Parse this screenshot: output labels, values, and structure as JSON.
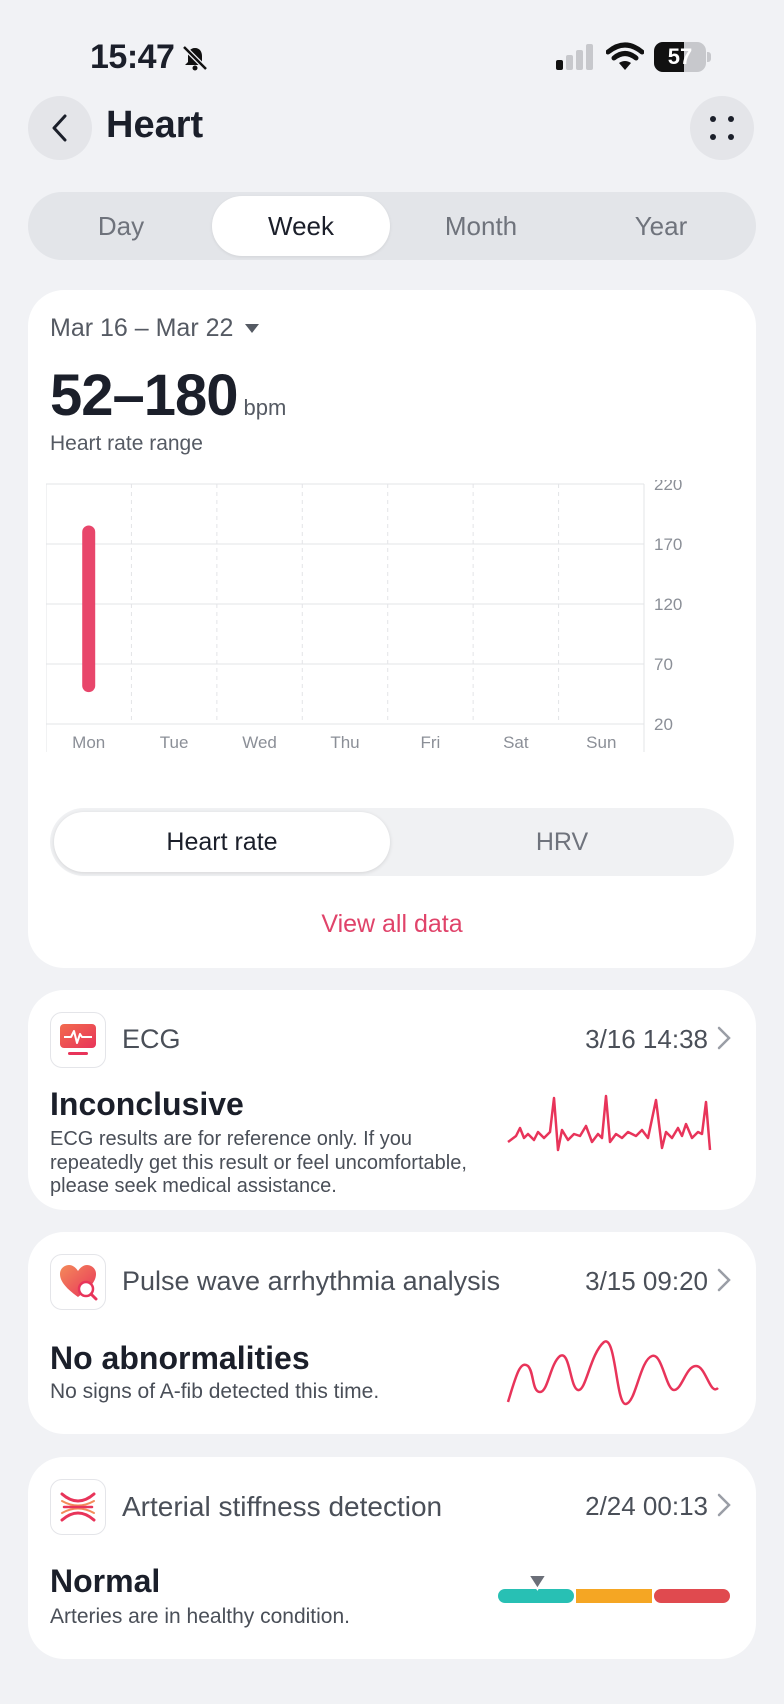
{
  "status_bar": {
    "time": "15:47",
    "battery": "57",
    "battery_level": 0.57
  },
  "header": {
    "title": "Heart"
  },
  "period_tabs": [
    {
      "label": "Day"
    },
    {
      "label": "Week"
    },
    {
      "label": "Month"
    },
    {
      "label": "Year"
    }
  ],
  "period_selected": "Week",
  "summary": {
    "date_range": "Mar 16 – Mar 22",
    "range_value": "52–180",
    "range_unit": "bpm",
    "range_label": "Heart rate range",
    "view_all": "View all data"
  },
  "metric_toggle": {
    "active": "Heart rate",
    "inactive": "HRV"
  },
  "accent_color": "#e8466b",
  "chart_data": {
    "type": "bar",
    "categories": [
      "Mon",
      "Tue",
      "Wed",
      "Thu",
      "Fri",
      "Sat",
      "Sun"
    ],
    "series": [
      {
        "values": [
          [
            52,
            180
          ],
          null,
          null,
          null,
          null,
          null,
          null
        ]
      }
    ],
    "yticks": [
      20,
      70,
      120,
      170,
      220
    ],
    "ylim": [
      20,
      220
    ],
    "axis_position": "right",
    "grid": true
  },
  "ecg": {
    "title": "ECG",
    "date": "3/16 14:38",
    "status": "Inconclusive",
    "description": "ECG results are for reference only. If you repeatedly get this result or feel uncomfortable, please seek medical assistance."
  },
  "pulse": {
    "title": "Pulse wave arrhythmia analysis",
    "date": "3/15 09:20",
    "status": "No abnormalities",
    "description": "No signs of A-fib detected this time."
  },
  "stiffness": {
    "title": "Arterial stiffness detection",
    "date": "2/24 00:13",
    "status": "Normal",
    "description": "Arteries are in healthy condition.",
    "scale_colors": [
      "#28c0b4",
      "#f5a623",
      "#e04a4f"
    ],
    "level": 0.17
  }
}
